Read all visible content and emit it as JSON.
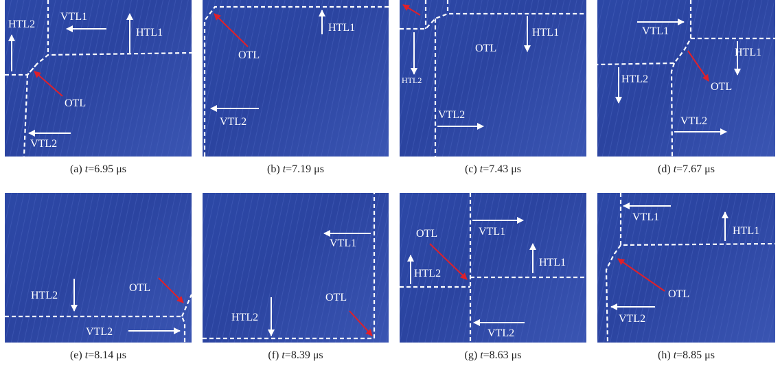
{
  "panels": [
    {
      "letter": "(a) ",
      "tvar": "t",
      "value": "=6.95 μs",
      "labels": {
        "vtl1": "VTL1",
        "htl1": "HTL1",
        "htl2": "HTL2",
        "otl": "OTL",
        "vtl2": "VTL2"
      }
    },
    {
      "letter": "(b) ",
      "tvar": "t",
      "value": "=7.19 μs",
      "labels": {
        "htl1": "HTL1",
        "otl": "OTL",
        "vtl2": "VTL2"
      }
    },
    {
      "letter": "(c) ",
      "tvar": "t",
      "value": "=7.43 μs",
      "labels": {
        "htl1": "HTL1",
        "otl": "OTL",
        "htl2": "HTL2",
        "vtl2": "VTL2"
      }
    },
    {
      "letter": "(d) ",
      "tvar": "t",
      "value": "=7.67 μs",
      "labels": {
        "vtl1": "VTL1",
        "htl1": "HTL1",
        "htl2": "HTL2",
        "otl": "OTL",
        "vtl2": "VTL2"
      }
    },
    {
      "letter": "(e) ",
      "tvar": "t",
      "value": "=8.14 μs",
      "labels": {
        "htl2": "HTL2",
        "otl": "OTL",
        "vtl2": "VTL2"
      }
    },
    {
      "letter": "(f) ",
      "tvar": "t",
      "value": "=8.39 μs",
      "labels": {
        "vtl1": "VTL1",
        "htl2": "HTL2",
        "otl": "OTL"
      }
    },
    {
      "letter": "(g) ",
      "tvar": "t",
      "value": "=8.63 μs",
      "labels": {
        "otl": "OTL",
        "vtl1": "VTL1",
        "htl1": "HTL1",
        "htl2": "HTL2",
        "vtl2": "VTL2"
      }
    },
    {
      "letter": "(h) ",
      "tvar": "t",
      "value": "=8.85 μs",
      "labels": {
        "vtl1": "VTL1",
        "htl1": "HTL1",
        "otl": "OTL",
        "vtl2": "VTL2"
      }
    }
  ],
  "colors": {
    "background": "#2c48a6",
    "front_line": "#ffffff",
    "arrow_white": "#ffffff",
    "arrow_red": "#e0202a"
  }
}
